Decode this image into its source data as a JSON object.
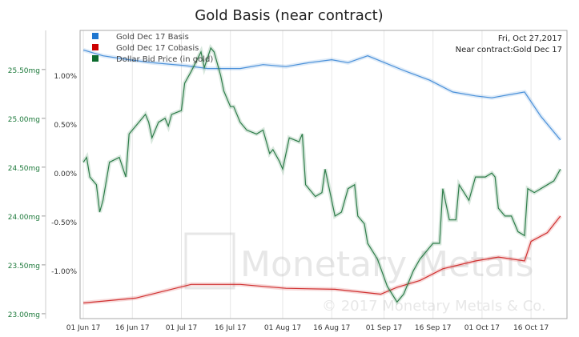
{
  "chart_data": {
    "type": "line",
    "title": "Gold Basis (near contract)",
    "date_label": "Fri, Oct 27,2017",
    "contract_label": "Near contract:Gold Dec 17",
    "watermark": "Monetary Metals",
    "copyright": "© 2017 Monetary Metals & Co.",
    "x_unit": "days since 01 Jun 17",
    "x_ticks": [
      {
        "day": 0,
        "label": "01 Jun 17"
      },
      {
        "day": 15,
        "label": "16 Jun 17"
      },
      {
        "day": 30,
        "label": "01 Jul 17"
      },
      {
        "day": 45,
        "label": "16 Jul 17"
      },
      {
        "day": 61,
        "label": "01 Aug 17"
      },
      {
        "day": 76,
        "label": "16 Aug 17"
      },
      {
        "day": 92,
        "label": "01 Sep 17"
      },
      {
        "day": 107,
        "label": "16 Sep 17"
      },
      {
        "day": 122,
        "label": "01 Oct 17"
      },
      {
        "day": 137,
        "label": "16 Oct 17"
      }
    ],
    "xlim": [
      -1,
      148
    ],
    "y_left": {
      "ylim": [
        22.95,
        25.9
      ],
      "ticks": [
        {
          "v": 25.5,
          "label": "25.50mg"
        },
        {
          "v": 25.0,
          "label": "25.00mg"
        },
        {
          "v": 24.5,
          "label": "24.50mg"
        },
        {
          "v": 24.0,
          "label": "24.00mg"
        },
        {
          "v": 23.5,
          "label": "23.50mg"
        },
        {
          "v": 23.0,
          "label": "23.00mg"
        }
      ]
    },
    "y_pct": {
      "ylim": [
        -1.49,
        1.46
      ],
      "ticks": [
        {
          "v": 1.0,
          "label": "1.00%"
        },
        {
          "v": 0.5,
          "label": "0.50%"
        },
        {
          "v": 0.0,
          "label": "0.00%"
        },
        {
          "v": -0.5,
          "label": "-0.50%"
        },
        {
          "v": -1.0,
          "label": "-1.00%"
        }
      ]
    },
    "series": [
      {
        "name": "Gold Dec 17 Basis",
        "color": "#4a90d9",
        "legend_color": "#1f77d0",
        "axis": "pct",
        "points": [
          [
            0,
            1.26
          ],
          [
            6,
            1.2
          ],
          [
            14,
            1.16
          ],
          [
            21,
            1.13
          ],
          [
            31,
            1.1
          ],
          [
            38,
            1.07
          ],
          [
            48,
            1.07
          ],
          [
            55,
            1.11
          ],
          [
            62,
            1.09
          ],
          [
            69,
            1.13
          ],
          [
            76,
            1.16
          ],
          [
            81,
            1.13
          ],
          [
            87,
            1.2
          ],
          [
            98,
            1.05
          ],
          [
            106,
            0.95
          ],
          [
            113,
            0.83
          ],
          [
            120,
            0.79
          ],
          [
            125,
            0.77
          ],
          [
            135,
            0.83
          ],
          [
            140,
            0.58
          ],
          [
            146,
            0.34
          ]
        ]
      },
      {
        "name": "Gold Dec 17 Cobasis",
        "color": "#d03030",
        "legend_color": "#cc0000",
        "axis": "pct",
        "points": [
          [
            0,
            -1.33
          ],
          [
            16,
            -1.28
          ],
          [
            33,
            -1.14
          ],
          [
            48,
            -1.14
          ],
          [
            62,
            -1.18
          ],
          [
            77,
            -1.19
          ],
          [
            91,
            -1.24
          ],
          [
            96,
            -1.17
          ],
          [
            103,
            -1.1
          ],
          [
            110,
            -0.98
          ],
          [
            120,
            -0.9
          ],
          [
            127,
            -0.86
          ],
          [
            135,
            -0.9
          ],
          [
            137,
            -0.7
          ],
          [
            142,
            -0.61
          ],
          [
            146,
            -0.44
          ]
        ]
      },
      {
        "name": "Dollar Bid Price (in gold)",
        "color": "#2e7d4a",
        "legend_color": "#0b6b2e",
        "axis": "mg",
        "points": [
          [
            0,
            24.55
          ],
          [
            1,
            24.6
          ],
          [
            2,
            24.4
          ],
          [
            4,
            24.32
          ],
          [
            5,
            24.04
          ],
          [
            6,
            24.16
          ],
          [
            8,
            24.55
          ],
          [
            11,
            24.6
          ],
          [
            13,
            24.4
          ],
          [
            14,
            24.84
          ],
          [
            17,
            24.96
          ],
          [
            19,
            25.04
          ],
          [
            20,
            24.96
          ],
          [
            21,
            24.8
          ],
          [
            23,
            24.96
          ],
          [
            25,
            25.0
          ],
          [
            26,
            24.92
          ],
          [
            27,
            25.04
          ],
          [
            30,
            25.08
          ],
          [
            31,
            25.36
          ],
          [
            33,
            25.48
          ],
          [
            36,
            25.68
          ],
          [
            37,
            25.52
          ],
          [
            39,
            25.72
          ],
          [
            40,
            25.68
          ],
          [
            42,
            25.44
          ],
          [
            43,
            25.28
          ],
          [
            45,
            25.12
          ],
          [
            46,
            25.12
          ],
          [
            48,
            24.96
          ],
          [
            50,
            24.88
          ],
          [
            53,
            24.84
          ],
          [
            55,
            24.88
          ],
          [
            57,
            24.64
          ],
          [
            58,
            24.68
          ],
          [
            60,
            24.56
          ],
          [
            61,
            24.48
          ],
          [
            63,
            24.8
          ],
          [
            66,
            24.76
          ],
          [
            67,
            24.84
          ],
          [
            68,
            24.32
          ],
          [
            71,
            24.2
          ],
          [
            73,
            24.24
          ],
          [
            74,
            24.48
          ],
          [
            77,
            24.0
          ],
          [
            79,
            24.04
          ],
          [
            81,
            24.28
          ],
          [
            83,
            24.32
          ],
          [
            84,
            24.0
          ],
          [
            86,
            23.92
          ],
          [
            87,
            23.72
          ],
          [
            90,
            23.56
          ],
          [
            93,
            23.28
          ],
          [
            96,
            23.12
          ],
          [
            98,
            23.2
          ],
          [
            101,
            23.44
          ],
          [
            103,
            23.56
          ],
          [
            107,
            23.72
          ],
          [
            109,
            23.72
          ],
          [
            110,
            24.28
          ],
          [
            112,
            23.96
          ],
          [
            114,
            23.96
          ],
          [
            115,
            24.32
          ],
          [
            118,
            24.16
          ],
          [
            120,
            24.4
          ],
          [
            123,
            24.4
          ],
          [
            125,
            24.44
          ],
          [
            126,
            24.4
          ],
          [
            127,
            24.08
          ],
          [
            129,
            24.0
          ],
          [
            131,
            24.0
          ],
          [
            133,
            23.84
          ],
          [
            135,
            23.8
          ],
          [
            136,
            24.28
          ],
          [
            138,
            24.24
          ],
          [
            142,
            24.32
          ],
          [
            144,
            24.36
          ],
          [
            146,
            24.48
          ]
        ]
      }
    ]
  }
}
